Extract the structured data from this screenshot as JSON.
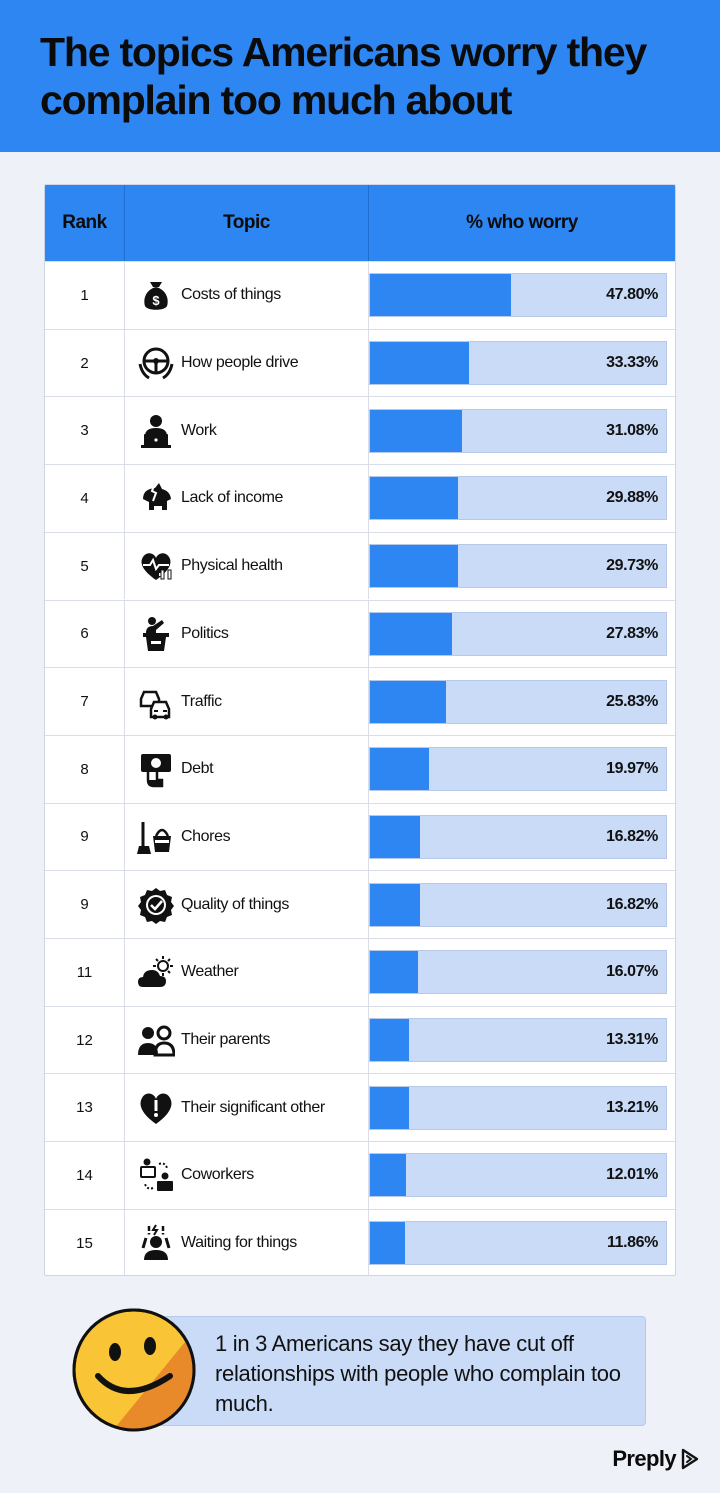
{
  "title": "The topics Americans worry they complain too much about",
  "colors": {
    "accent": "#2e86f2",
    "track": "#c9dbf7",
    "background": "#eef1f7"
  },
  "table_headers": {
    "rank": "Rank",
    "topic": "Topic",
    "pct": "% who worry"
  },
  "chart_data": {
    "type": "bar",
    "orientation": "horizontal",
    "xlim": [
      0,
      100
    ],
    "categories": [
      "Costs of things",
      "How people drive",
      "Work",
      "Lack of income",
      "Physical health",
      "Politics",
      "Traffic",
      "Debt",
      "Chores",
      "Quality of things",
      "Weather",
      "Their parents",
      "Their significant other",
      "Coworkers",
      "Waiting for things"
    ],
    "values": [
      47.8,
      33.33,
      31.08,
      29.88,
      29.73,
      27.83,
      25.83,
      19.97,
      16.82,
      16.82,
      16.07,
      13.31,
      13.21,
      12.01,
      11.86
    ]
  },
  "rows": [
    {
      "rank": "1",
      "topic": "Costs of things",
      "value": 47.8,
      "label": "47.80%",
      "icon": "money-bag-icon"
    },
    {
      "rank": "2",
      "topic": "How people drive",
      "value": 33.33,
      "label": "33.33%",
      "icon": "steering-wheel-icon"
    },
    {
      "rank": "3",
      "topic": "Work",
      "value": 31.08,
      "label": "31.08%",
      "icon": "person-laptop-icon"
    },
    {
      "rank": "4",
      "topic": "Lack of income",
      "value": 29.88,
      "label": "29.88%",
      "icon": "broken-piggy-bank-icon"
    },
    {
      "rank": "5",
      "topic": "Physical health",
      "value": 29.73,
      "label": "29.73%",
      "icon": "heart-dumbbell-icon"
    },
    {
      "rank": "6",
      "topic": "Politics",
      "value": 27.83,
      "label": "27.83%",
      "icon": "podium-speaker-icon"
    },
    {
      "rank": "7",
      "topic": "Traffic",
      "value": 25.83,
      "label": "25.83%",
      "icon": "cars-icon"
    },
    {
      "rank": "8",
      "topic": "Debt",
      "value": 19.97,
      "label": "19.97%",
      "icon": "hand-banknote-icon"
    },
    {
      "rank": "9",
      "topic": "Chores",
      "value": 16.82,
      "label": "16.82%",
      "icon": "mop-bucket-icon"
    },
    {
      "rank": "9",
      "topic": "Quality of things",
      "value": 16.82,
      "label": "16.82%",
      "icon": "quality-badge-icon"
    },
    {
      "rank": "11",
      "topic": "Weather",
      "value": 16.07,
      "label": "16.07%",
      "icon": "sun-cloud-icon"
    },
    {
      "rank": "12",
      "topic": "Their parents",
      "value": 13.31,
      "label": "13.31%",
      "icon": "two-people-icon"
    },
    {
      "rank": "13",
      "topic": "Their significant other",
      "value": 13.21,
      "label": "13.21%",
      "icon": "heart-alert-icon"
    },
    {
      "rank": "14",
      "topic": "Coworkers",
      "value": 12.01,
      "label": "12.01%",
      "icon": "coworkers-icon"
    },
    {
      "rank": "15",
      "topic": "Waiting for things",
      "value": 11.86,
      "label": "11.86%",
      "icon": "frustrated-person-icon"
    }
  ],
  "callout": {
    "text": "1 in 3 Americans say they have cut off relationships with people who complain too much.",
    "icon": "smiley-face-icon"
  },
  "brand": {
    "name": "Preply",
    "icon": "preply-logo-icon"
  }
}
